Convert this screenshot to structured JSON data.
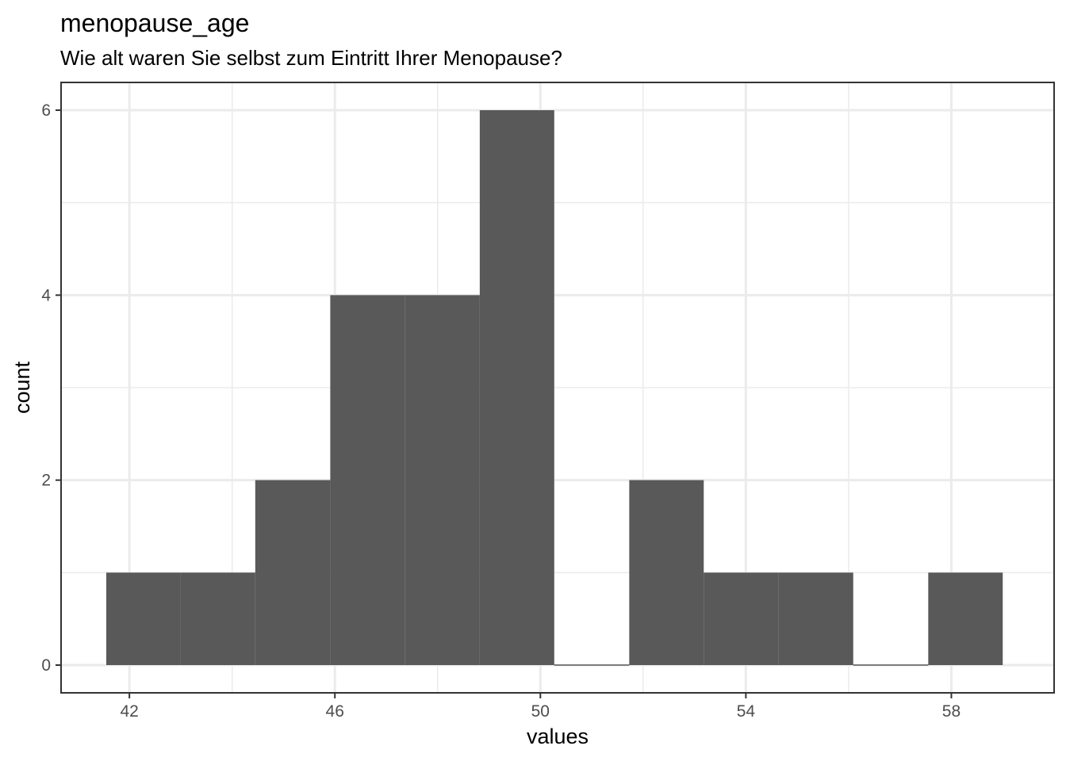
{
  "chart_data": {
    "type": "bar",
    "subtype": "histogram",
    "title": "menopause_age",
    "subtitle": "Wie alt waren Sie selbst zum Eintritt Ihrer Menopause?",
    "xlabel": "values",
    "ylabel": "count",
    "bins": [
      {
        "x0": 41.55,
        "x1": 43.0,
        "count": 1
      },
      {
        "x0": 43.0,
        "x1": 44.45,
        "count": 1
      },
      {
        "x0": 44.45,
        "x1": 45.91,
        "count": 2
      },
      {
        "x0": 45.91,
        "x1": 47.36,
        "count": 4
      },
      {
        "x0": 47.36,
        "x1": 48.82,
        "count": 4
      },
      {
        "x0": 48.82,
        "x1": 50.27,
        "count": 6
      },
      {
        "x0": 50.27,
        "x1": 51.73,
        "count": 0
      },
      {
        "x0": 51.73,
        "x1": 53.18,
        "count": 2
      },
      {
        "x0": 53.18,
        "x1": 54.64,
        "count": 1
      },
      {
        "x0": 54.64,
        "x1": 56.09,
        "count": 1
      },
      {
        "x0": 56.09,
        "x1": 57.55,
        "count": 0
      },
      {
        "x0": 57.55,
        "x1": 59.0,
        "count": 1
      }
    ],
    "xlim": [
      40.67,
      60.0
    ],
    "ylim": [
      -0.3,
      6.3
    ],
    "x_ticks": [
      42,
      46,
      50,
      54,
      58
    ],
    "y_ticks": [
      0,
      2,
      4,
      6
    ],
    "grid": true,
    "bar_color": "#595959",
    "grid_color": "#ebebeb",
    "panel_border_color": "#333333"
  }
}
